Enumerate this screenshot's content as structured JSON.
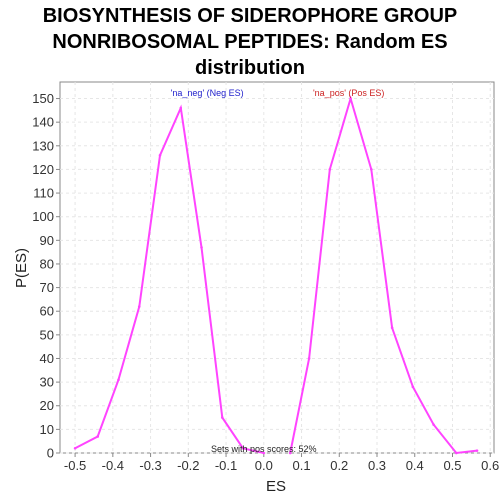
{
  "chart_data": {
    "type": "line",
    "title_lines": [
      "BIOSYNTHESIS OF SIDEROPHORE GROUP",
      "NONRIBOSOMAL PEPTIDES: Random ES",
      "distribution"
    ],
    "xlabel": "ES",
    "ylabel": "P(ES)",
    "xlim": [
      -0.54,
      0.61
    ],
    "ylim": [
      0,
      157
    ],
    "xticks": [
      -0.5,
      -0.4,
      -0.3,
      -0.2,
      -0.1,
      0.0,
      0.1,
      0.2,
      0.3,
      0.4,
      0.5,
      0.6
    ],
    "xtick_labels": [
      "-0.5",
      "-0.4",
      "-0.3",
      "-0.2",
      "-0.1",
      "0.0",
      "0.1",
      "0.2",
      "0.3",
      "0.4",
      "0.5",
      "0.6"
    ],
    "yticks": [
      0,
      10,
      20,
      30,
      40,
      50,
      60,
      70,
      80,
      90,
      100,
      110,
      120,
      130,
      140,
      150
    ],
    "ytick_labels": [
      "0",
      "10",
      "20",
      "30",
      "40",
      "50",
      "60",
      "70",
      "80",
      "90",
      "100",
      "110",
      "120",
      "130",
      "140",
      "150"
    ],
    "grid": true,
    "line_color": "#ff44ff",
    "series": [
      {
        "x": [
          -0.5,
          -0.44,
          -0.385,
          -0.33,
          -0.275,
          -0.22,
          -0.165,
          -0.11,
          -0.055,
          0.0
        ],
        "y": [
          2,
          7,
          31,
          62,
          126,
          146,
          87,
          15,
          2,
          0
        ]
      },
      {
        "x": [
          0.07,
          0.12,
          0.175,
          0.23,
          0.285,
          0.34,
          0.395,
          0.45,
          0.51,
          0.565
        ],
        "y": [
          0,
          40,
          120,
          150,
          120,
          53,
          28,
          12,
          0,
          1
        ]
      }
    ],
    "annotations": [
      {
        "text": "'na_neg' (Neg ES)",
        "x": -0.15,
        "y": 151,
        "color": "#2222cc"
      },
      {
        "text": "'na_pos' (Pos ES)",
        "x": 0.225,
        "y": 151,
        "color": "#cc2222"
      },
      {
        "text": "Sets with pos scores: 52%",
        "x": 0.0,
        "y": 0.5,
        "color": "#222222"
      }
    ]
  }
}
